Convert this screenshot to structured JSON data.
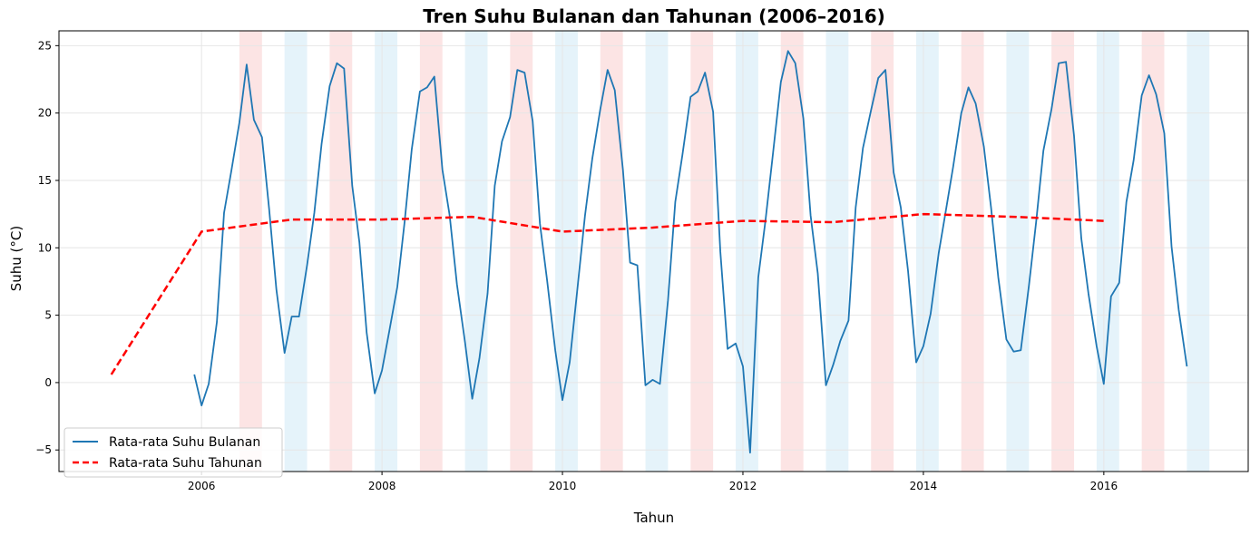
{
  "chart_data": {
    "type": "line",
    "title": "Tren Suhu Bulanan dan Tahunan (2006–2016)",
    "xlabel": "Tahun",
    "ylabel": "Suhu (°C)",
    "xlim": [
      2004.42,
      2017.6
    ],
    "ylim": [
      -6.6,
      26.1
    ],
    "x_ticks": [
      2006,
      2008,
      2010,
      2012,
      2014,
      2016
    ],
    "y_ticks": [
      -5,
      0,
      5,
      10,
      15,
      20,
      25
    ],
    "grid": true,
    "legend_position": "bottom-left",
    "colors": {
      "monthly": "#1f77b4",
      "annual": "#ff0000",
      "summer_band": "#f4a6a6",
      "winter_band": "#a9d8ef",
      "grid": "#e6e6e6"
    },
    "summer_bands": [
      [
        2006.42,
        2006.67
      ],
      [
        2007.42,
        2007.67
      ],
      [
        2008.42,
        2008.67
      ],
      [
        2009.42,
        2009.67
      ],
      [
        2010.42,
        2010.67
      ],
      [
        2011.42,
        2011.67
      ],
      [
        2012.42,
        2012.67
      ],
      [
        2013.42,
        2013.67
      ],
      [
        2014.42,
        2014.67
      ],
      [
        2015.42,
        2015.67
      ],
      [
        2016.42,
        2016.67
      ]
    ],
    "winter_bands": [
      [
        2006.92,
        2007.17
      ],
      [
        2007.92,
        2008.17
      ],
      [
        2008.92,
        2009.17
      ],
      [
        2009.92,
        2010.17
      ],
      [
        2010.92,
        2011.17
      ],
      [
        2011.92,
        2012.17
      ],
      [
        2012.92,
        2013.17
      ],
      [
        2013.92,
        2014.17
      ],
      [
        2014.92,
        2015.17
      ],
      [
        2015.92,
        2016.17
      ],
      [
        2016.92,
        2017.17
      ]
    ],
    "series": [
      {
        "name": "Rata-rata Suhu Bulanan",
        "style": "solid",
        "x": [
          2005.92,
          2006.0,
          2006.08,
          2006.17,
          2006.25,
          2006.33,
          2006.42,
          2006.5,
          2006.58,
          2006.67,
          2006.75,
          2006.83,
          2006.92,
          2007.0,
          2007.08,
          2007.17,
          2007.25,
          2007.33,
          2007.42,
          2007.5,
          2007.58,
          2007.67,
          2007.75,
          2007.83,
          2007.92,
          2008.0,
          2008.08,
          2008.17,
          2008.25,
          2008.33,
          2008.42,
          2008.5,
          2008.58,
          2008.67,
          2008.75,
          2008.83,
          2008.92,
          2009.0,
          2009.08,
          2009.17,
          2009.25,
          2009.33,
          2009.42,
          2009.5,
          2009.58,
          2009.67,
          2009.75,
          2009.83,
          2009.92,
          2010.0,
          2010.08,
          2010.17,
          2010.25,
          2010.33,
          2010.42,
          2010.5,
          2010.58,
          2010.67,
          2010.75,
          2010.83,
          2010.92,
          2011.0,
          2011.08,
          2011.17,
          2011.25,
          2011.33,
          2011.42,
          2011.5,
          2011.58,
          2011.67,
          2011.75,
          2011.83,
          2011.92,
          2012.0,
          2012.08,
          2012.17,
          2012.25,
          2012.33,
          2012.42,
          2012.5,
          2012.58,
          2012.67,
          2012.75,
          2012.83,
          2012.92,
          2013.0,
          2013.08,
          2013.17,
          2013.25,
          2013.33,
          2013.42,
          2013.5,
          2013.58,
          2013.67,
          2013.75,
          2013.83,
          2013.92,
          2014.0,
          2014.08,
          2014.17,
          2014.25,
          2014.33,
          2014.42,
          2014.5,
          2014.58,
          2014.67,
          2014.75,
          2014.83,
          2014.92,
          2015.0,
          2015.08,
          2015.17,
          2015.25,
          2015.33,
          2015.42,
          2015.5,
          2015.58,
          2015.67,
          2015.75,
          2015.83,
          2015.92,
          2016.0,
          2016.08,
          2016.17,
          2016.25,
          2016.33,
          2016.42,
          2016.5,
          2016.58,
          2016.67,
          2016.75,
          2016.83,
          2016.92
        ],
        "values": [
          0.6,
          -1.7,
          -0.1,
          4.5,
          12.6,
          15.7,
          19.3,
          23.6,
          19.5,
          18.2,
          12.8,
          6.9,
          2.2,
          4.9,
          4.9,
          8.7,
          12.6,
          17.7,
          22.0,
          23.7,
          23.3,
          14.6,
          10.4,
          3.7,
          -0.8,
          0.9,
          3.8,
          7.1,
          11.9,
          17.3,
          21.6,
          21.9,
          22.7,
          15.8,
          12.4,
          7.3,
          3.0,
          -1.2,
          1.8,
          6.6,
          14.6,
          17.9,
          19.7,
          23.2,
          23.0,
          19.4,
          11.8,
          7.6,
          2.4,
          -1.3,
          1.5,
          7.2,
          12.4,
          16.6,
          20.3,
          23.2,
          21.7,
          15.8,
          8.9,
          8.7,
          -0.2,
          0.2,
          -0.1,
          6.1,
          13.4,
          16.9,
          21.2,
          21.6,
          23.0,
          20.1,
          9.7,
          2.5,
          2.9,
          1.2,
          -5.2,
          7.8,
          12.0,
          16.8,
          22.3,
          24.6,
          23.7,
          19.6,
          12.4,
          8.1,
          -0.2,
          1.3,
          3.1,
          4.6,
          13.0,
          17.4,
          20.2,
          22.6,
          23.2,
          15.6,
          13.0,
          8.3,
          1.5,
          2.7,
          5.1,
          9.6,
          12.8,
          16.0,
          20.0,
          21.9,
          20.7,
          17.5,
          13.0,
          7.8,
          3.2,
          2.3,
          2.4,
          7.2,
          11.9,
          17.2,
          20.3,
          23.7,
          23.8,
          18.3,
          10.7,
          6.6,
          2.7,
          -0.1,
          6.4,
          7.4,
          13.4,
          16.5,
          21.3,
          22.8,
          21.4,
          18.5,
          10.1,
          5.4,
          1.2
        ]
      },
      {
        "name": "Rata-rata Suhu Tahunan",
        "style": "dashed",
        "x": [
          2005,
          2006,
          2007,
          2008,
          2009,
          2010,
          2011,
          2012,
          2013,
          2014,
          2015,
          2016
        ],
        "values": [
          0.6,
          11.2,
          12.1,
          12.1,
          12.3,
          11.2,
          11.5,
          12.0,
          11.9,
          12.5,
          12.3,
          12.0
        ]
      }
    ]
  }
}
